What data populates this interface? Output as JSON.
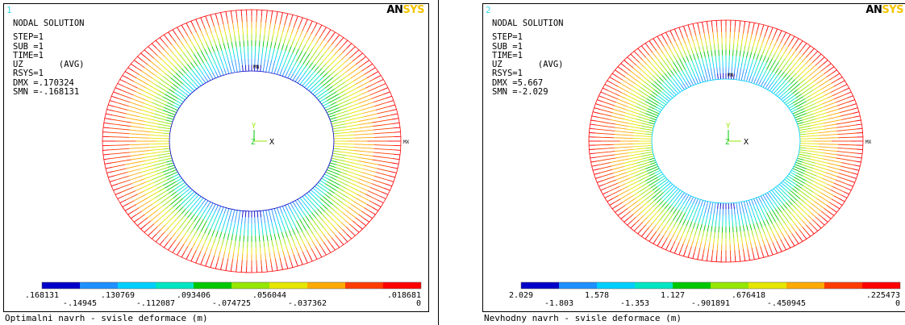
{
  "colors": {
    "legend": [
      "#0000c8",
      "#1e90ff",
      "#00cfff",
      "#00e6c3",
      "#00c800",
      "#96e600",
      "#e6e600",
      "#ffaa00",
      "#ff3c00",
      "#ff0000"
    ],
    "logo_dark": "#000000",
    "logo_light": "#f5c400",
    "panel_number": "#3ad6e8"
  },
  "chart_data": [
    {
      "type": "heatmap",
      "panel_number": "1",
      "logo_left": "AN",
      "logo_right": "SYS",
      "header": "NODAL SOLUTION",
      "info_lines": [
        "STEP=1",
        "SUB =1",
        "TIME=1",
        "UZ       (AVG)",
        "RSYS=1",
        "DMX =.170324",
        "SMN =-.168131"
      ],
      "mn_label": "MN",
      "mx_label": "MX",
      "axis_y": "Y",
      "axis_z": "Z",
      "axis_x": "X",
      "legend_top": [
        ".168131",
        ".130769",
        ".093406",
        ".056044",
        ".018681"
      ],
      "legend_bottom": [
        "-.14945",
        "-.112087",
        "-.074725",
        "-.037362",
        "0"
      ],
      "range": [
        -0.168131,
        0.018681
      ],
      "caption": "Optimalni navrh - svisle deformace (m)"
    },
    {
      "type": "heatmap",
      "panel_number": "2",
      "logo_left": "AN",
      "logo_right": "SYS",
      "header": "NODAL SOLUTION",
      "info_lines": [
        "STEP=1",
        "SUB =1",
        "TIME=1",
        "UZ       (AVG)",
        "RSYS=1",
        "DMX =5.667",
        "SMN =-2.029"
      ],
      "mn_label": "MN",
      "mx_label": "MX",
      "axis_y": "Y",
      "axis_z": "Z",
      "axis_x": "X",
      "legend_top": [
        "2.029",
        "1.578",
        "1.127",
        ".676418",
        ".225473"
      ],
      "legend_bottom": [
        "-1.803",
        "-1.353",
        "-.901891",
        "-.450945",
        "0"
      ],
      "range": [
        -2.029,
        0.225473
      ],
      "caption": "Nevhodny navrh - svisle deformace (m)"
    }
  ]
}
